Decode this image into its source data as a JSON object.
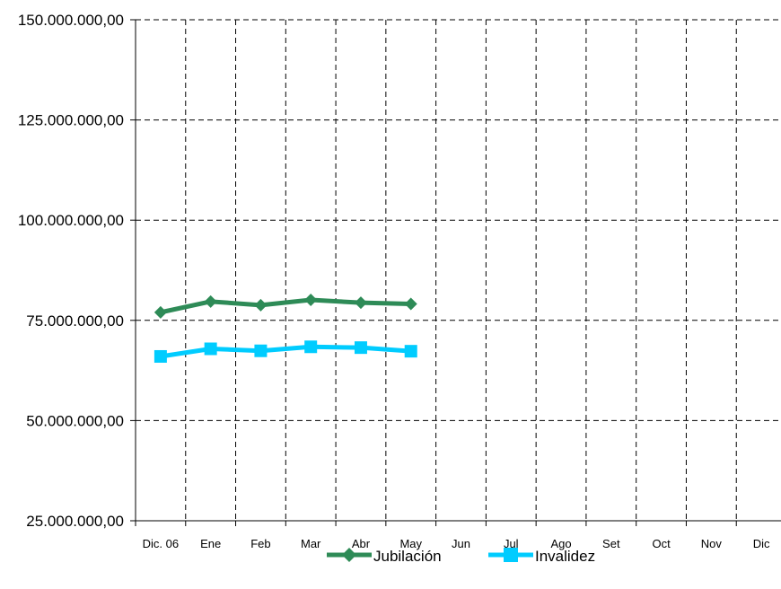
{
  "chart_data": {
    "type": "line",
    "title": "",
    "xlabel": "",
    "ylabel": "",
    "categories": [
      "Dic. 06",
      "Ene",
      "Feb",
      "Mar",
      "Abr",
      "May",
      "Jun",
      "Jul",
      "Ago",
      "Set",
      "Oct",
      "Nov",
      "Dic"
    ],
    "ylim": [
      25000000,
      150000000
    ],
    "yticks": [
      25000000,
      50000000,
      75000000,
      100000000,
      125000000,
      150000000
    ],
    "ytick_labels": [
      "25.000.000,00",
      "50.000.000,00",
      "75.000.000,00",
      "100.000.000,00",
      "125.000.000,00",
      "150.000.000,00"
    ],
    "grid": true,
    "legend_position": "bottom",
    "series": [
      {
        "name": "Jubilación",
        "color": "#2e8b57",
        "marker": "diamond",
        "values": [
          77000000,
          79700000,
          78800000,
          80100000,
          79400000,
          79100000,
          null,
          null,
          null,
          null,
          null,
          null,
          null
        ]
      },
      {
        "name": "Invalidez",
        "color": "#00ccff",
        "marker": "square",
        "values": [
          66000000,
          67900000,
          67400000,
          68400000,
          68200000,
          67300000,
          null,
          null,
          null,
          null,
          null,
          null,
          null
        ]
      }
    ]
  }
}
